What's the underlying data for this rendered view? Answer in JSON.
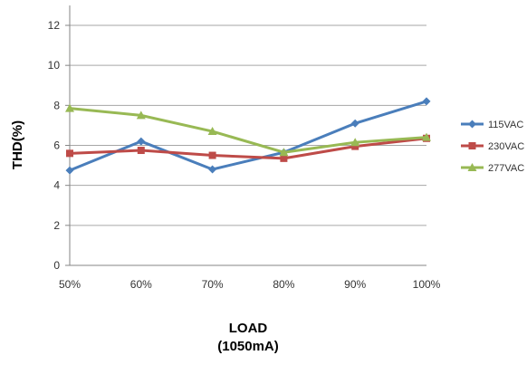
{
  "chart_data": {
    "type": "line",
    "categories": [
      "50%",
      "60%",
      "70%",
      "80%",
      "90%",
      "100%"
    ],
    "ylabel": "THD(%)",
    "xlabel_lines": [
      "LOAD",
      "(1050mA)"
    ],
    "ylim": [
      0,
      12
    ],
    "yticks": [
      0,
      2,
      4,
      6,
      8,
      10,
      12
    ],
    "grid": true,
    "legend_position": "right",
    "series": [
      {
        "name": "115VAC",
        "color": "#4a7ebb",
        "marker": "diamond",
        "values": [
          4.75,
          6.2,
          4.8,
          5.65,
          7.1,
          8.2
        ]
      },
      {
        "name": "230VAC",
        "color": "#be4b48",
        "marker": "square",
        "values": [
          5.6,
          5.75,
          5.5,
          5.35,
          5.95,
          6.35
        ]
      },
      {
        "name": "277VAC",
        "color": "#98b954",
        "marker": "triangle",
        "values": [
          7.85,
          7.5,
          6.7,
          5.65,
          6.15,
          6.4
        ]
      }
    ]
  }
}
